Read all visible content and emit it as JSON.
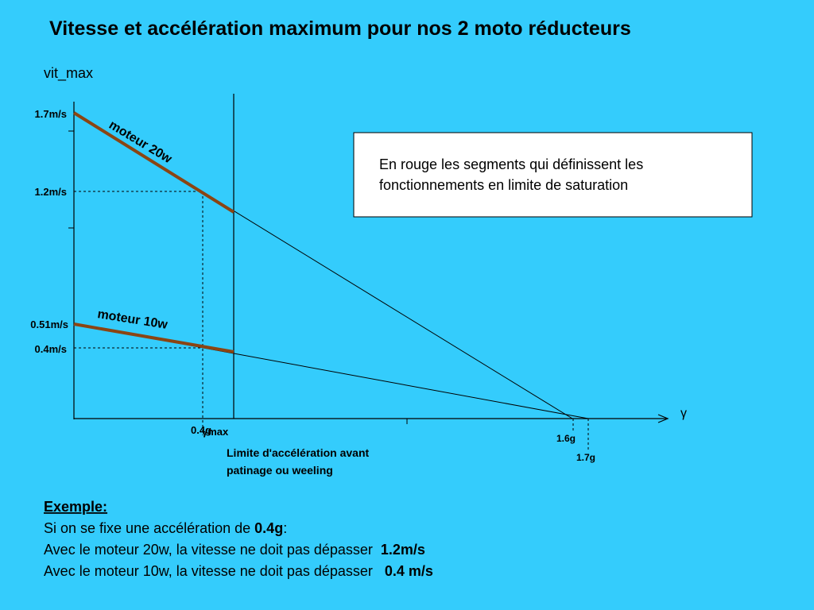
{
  "header": {
    "title": "Vitesse et accélération maximum pour nos 2 moto réducteurs"
  },
  "diagram": {
    "y_axis_label": "vit_max",
    "x_axis_label": "γ",
    "y_labels": [
      "1.7m/s",
      "1.2m/s",
      "0.51m/s",
      "0.4m/s"
    ],
    "x_labels": [
      "0.4g",
      "γmax",
      "1.6g",
      "1.7g"
    ],
    "curve_labels": [
      "moteur 20w",
      "moteur 10w"
    ],
    "note_box": [
      "En rouge les segments qui définissent les",
      "fonctionnements en limite de saturation"
    ],
    "limit_caption": [
      "Limite d'accélération avant",
      "patinage ou weeling"
    ]
  },
  "example": {
    "heading": "Exemple:",
    "lines": [
      [
        "Si on se fixe une accélération de ",
        "0.4g",
        ":"
      ],
      [
        "Avec le moteur 20w, la vitesse ne doit pas dépasser  ",
        "1.2m/s"
      ],
      [
        "Avec le moteur 10w, la vitesse ne doit pas dépasser   ",
        "0.4 m/s"
      ]
    ]
  }
}
